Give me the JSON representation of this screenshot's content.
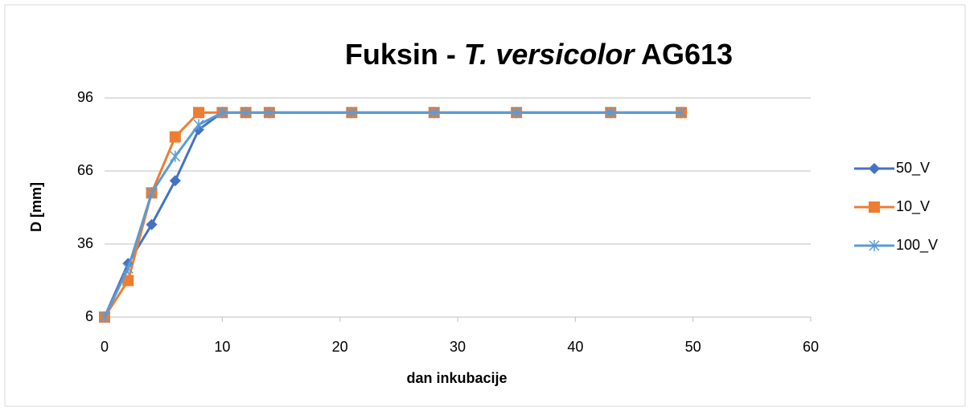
{
  "chart_data": {
    "type": "line",
    "title": [
      "Fuksin - ",
      "T. versicolor",
      " AG613"
    ],
    "x_label": "dan inkubacije",
    "y_label": "D [mm]",
    "x": [
      0,
      2,
      4,
      6,
      8,
      10,
      12,
      14,
      21,
      28,
      35,
      43,
      49
    ],
    "series": [
      {
        "name": "50_V",
        "color": "#4472c4",
        "marker": "diamond",
        "values": [
          6,
          28,
          44,
          62,
          83,
          90,
          90,
          90,
          90,
          90,
          90,
          90,
          90
        ]
      },
      {
        "name": "10_V",
        "color": "#ed7d31",
        "marker": "square",
        "values": [
          6,
          21,
          57,
          80,
          90,
          90,
          90,
          90,
          90,
          90,
          90,
          90,
          90
        ]
      },
      {
        "name": "100_V",
        "color": "#5b9bd5",
        "marker": "star",
        "values": [
          6,
          26,
          57,
          72,
          85,
          90,
          90,
          90,
          90,
          90,
          90,
          90,
          90
        ]
      }
    ],
    "xlim": [
      0,
      60
    ],
    "xticks": [
      0,
      10,
      20,
      30,
      40,
      50,
      60
    ],
    "ylim": [
      6,
      96
    ],
    "yticks": [
      6,
      36,
      66,
      96
    ],
    "grid": true,
    "legend": "right"
  }
}
